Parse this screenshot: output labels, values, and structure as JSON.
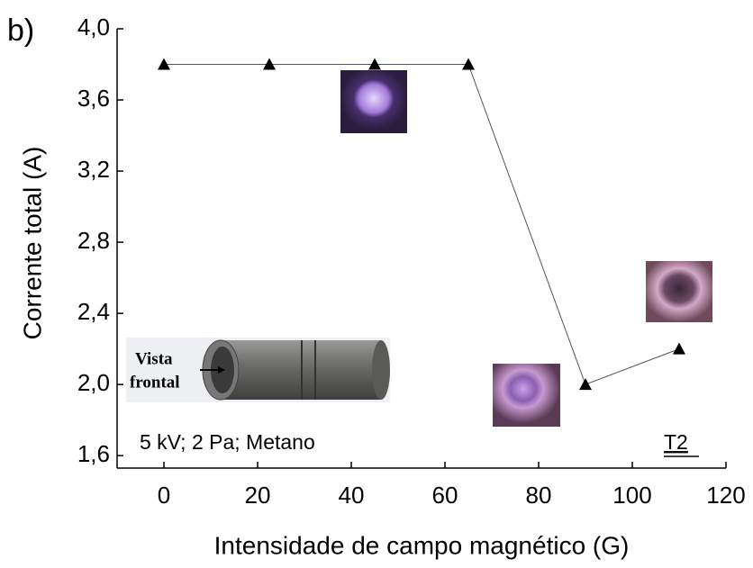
{
  "chart_data": {
    "type": "line",
    "panel_label": "b)",
    "xlabel": "Intensidade de campo magnético (G)",
    "ylabel": "Corrente total (A)",
    "annotations": [
      "5 kV; 2 Pa; Metano",
      "T2",
      "Vista",
      "frontal"
    ],
    "x": [
      0,
      22.5,
      45,
      65,
      90,
      110
    ],
    "series": [
      {
        "color": "#000000",
        "values": [
          3.8,
          3.8,
          3.8,
          3.8,
          2.0,
          2.2
        ]
      }
    ],
    "xlim": [
      -10,
      120
    ],
    "xticks": [
      0,
      20,
      40,
      60,
      80,
      100,
      120
    ],
    "ylim": [
      1.53,
      4.0
    ],
    "yticks": [
      {
        "value": 1.6,
        "label": "1,6"
      },
      {
        "value": 2.0,
        "label": "2,0"
      },
      {
        "value": 2.4,
        "label": "2,4"
      },
      {
        "value": 2.8,
        "label": "2,8"
      },
      {
        "value": 3.2,
        "label": "3,2"
      },
      {
        "value": 3.6,
        "label": "3,6"
      },
      {
        "value": 4.0,
        "label": "4,0"
      }
    ]
  }
}
